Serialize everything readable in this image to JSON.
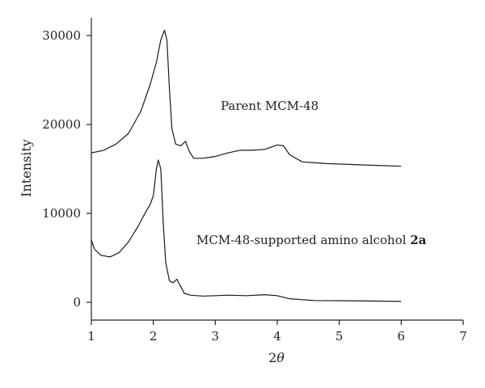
{
  "chart_data": {
    "type": "line",
    "title": "",
    "xlabel_prefix": "2",
    "xlabel_symbol": "θ",
    "ylabel": "Intensity",
    "xlim": [
      1,
      7
    ],
    "ylim": [
      -2000,
      32000
    ],
    "x_ticks": [
      1,
      2,
      3,
      4,
      5,
      6,
      7
    ],
    "y_ticks": [
      0,
      10000,
      20000,
      30000
    ],
    "grid": false,
    "series": [
      {
        "label_text": "Parent MCM-48",
        "label_bold": "",
        "points": [
          [
            1.0,
            16800
          ],
          [
            1.2,
            17100
          ],
          [
            1.4,
            17800
          ],
          [
            1.6,
            19000
          ],
          [
            1.8,
            21500
          ],
          [
            1.95,
            24500
          ],
          [
            2.05,
            27000
          ],
          [
            2.12,
            29500
          ],
          [
            2.18,
            30600
          ],
          [
            2.22,
            29500
          ],
          [
            2.26,
            24000
          ],
          [
            2.3,
            19500
          ],
          [
            2.36,
            17800
          ],
          [
            2.44,
            17600
          ],
          [
            2.52,
            18100
          ],
          [
            2.58,
            17000
          ],
          [
            2.65,
            16200
          ],
          [
            2.8,
            16200
          ],
          [
            3.0,
            16400
          ],
          [
            3.2,
            16800
          ],
          [
            3.4,
            17100
          ],
          [
            3.6,
            17100
          ],
          [
            3.8,
            17200
          ],
          [
            4.0,
            17700
          ],
          [
            4.1,
            17600
          ],
          [
            4.2,
            16600
          ],
          [
            4.4,
            15800
          ],
          [
            4.8,
            15600
          ],
          [
            5.2,
            15500
          ],
          [
            5.6,
            15400
          ],
          [
            6.0,
            15300
          ]
        ]
      },
      {
        "label_text": "MCM-48-supported amino alcohol ",
        "label_bold": "2a",
        "points": [
          [
            1.0,
            7000
          ],
          [
            1.05,
            6000
          ],
          [
            1.15,
            5300
          ],
          [
            1.3,
            5100
          ],
          [
            1.45,
            5600
          ],
          [
            1.6,
            6800
          ],
          [
            1.75,
            8500
          ],
          [
            1.88,
            10200
          ],
          [
            1.95,
            11000
          ],
          [
            2.0,
            12000
          ],
          [
            2.05,
            15000
          ],
          [
            2.08,
            16000
          ],
          [
            2.12,
            15000
          ],
          [
            2.16,
            9000
          ],
          [
            2.2,
            4500
          ],
          [
            2.26,
            2400
          ],
          [
            2.32,
            2200
          ],
          [
            2.38,
            2600
          ],
          [
            2.44,
            1800
          ],
          [
            2.5,
            1000
          ],
          [
            2.6,
            800
          ],
          [
            2.8,
            700
          ],
          [
            3.0,
            750
          ],
          [
            3.2,
            800
          ],
          [
            3.5,
            750
          ],
          [
            3.8,
            850
          ],
          [
            4.0,
            750
          ],
          [
            4.2,
            400
          ],
          [
            4.6,
            200
          ],
          [
            5.0,
            180
          ],
          [
            5.5,
            150
          ],
          [
            6.0,
            100
          ]
        ]
      }
    ]
  }
}
